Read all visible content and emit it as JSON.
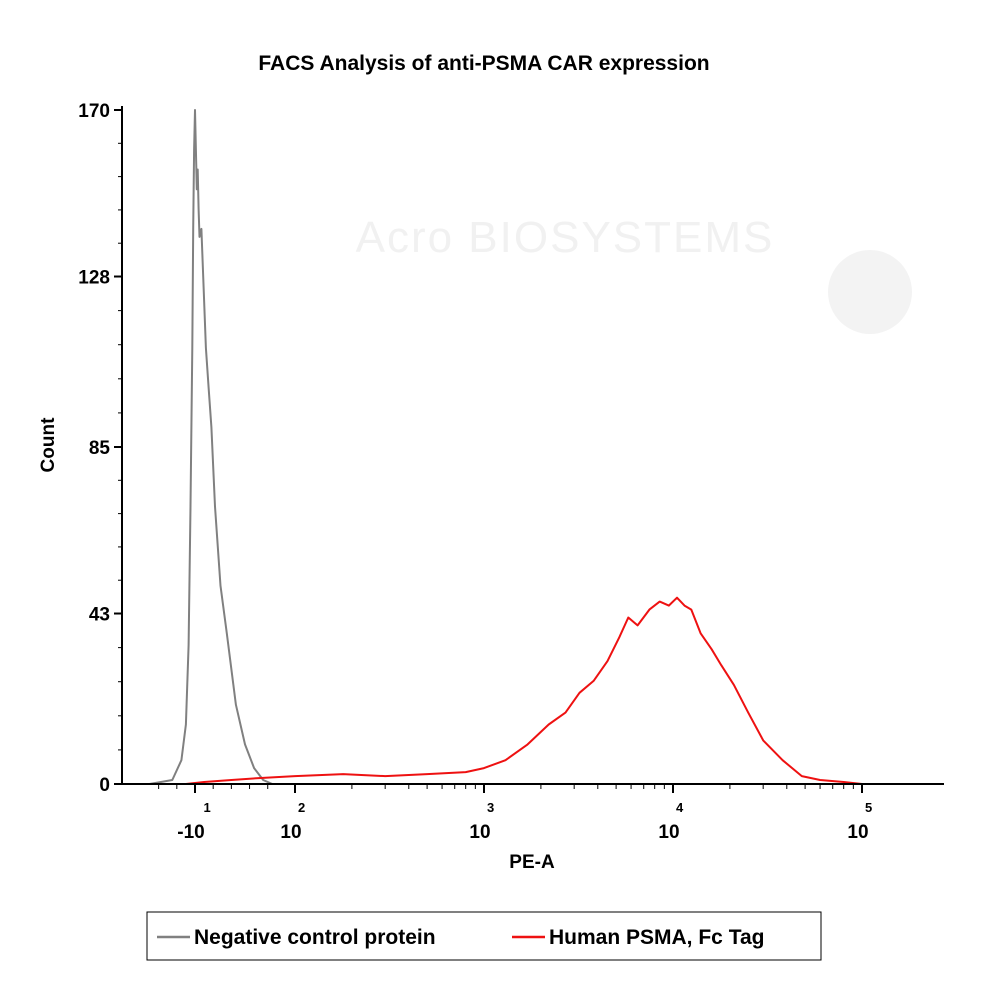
{
  "chart_data": {
    "type": "line",
    "title": "FACS Analysis of anti-PSMA CAR expression",
    "xlabel": "PE-A",
    "ylabel": "Count",
    "x_scale": "biexponential",
    "x_ticks": [
      {
        "base": "-10",
        "exp": "1",
        "value": -10
      },
      {
        "base": "10",
        "exp": "2",
        "value": 100
      },
      {
        "base": "10",
        "exp": "3",
        "value": 1000
      },
      {
        "base": "10",
        "exp": "4",
        "value": 10000
      },
      {
        "base": "10",
        "exp": "5",
        "value": 100000
      }
    ],
    "y_ticks": [
      "0",
      "43",
      "85",
      "128",
      "170"
    ],
    "ylim": [
      0,
      170
    ],
    "legend_position": "bottom",
    "watermark": "Acro BIOSYSTEMS",
    "series": [
      {
        "name": "Negative control protein",
        "color": "#808080",
        "points": [
          [
            -60,
            0
          ],
          [
            -35,
            1
          ],
          [
            -25,
            6
          ],
          [
            -20,
            15
          ],
          [
            -17,
            35
          ],
          [
            -15,
            70
          ],
          [
            -13,
            110
          ],
          [
            -12,
            140
          ],
          [
            -11,
            160
          ],
          [
            -10,
            170
          ],
          [
            -9,
            160
          ],
          [
            -8,
            150
          ],
          [
            -7,
            155
          ],
          [
            -6,
            145
          ],
          [
            -5,
            138
          ],
          [
            -3,
            140
          ],
          [
            -1,
            128
          ],
          [
            2,
            110
          ],
          [
            5,
            100
          ],
          [
            8,
            90
          ],
          [
            12,
            70
          ],
          [
            18,
            50
          ],
          [
            25,
            38
          ],
          [
            35,
            20
          ],
          [
            45,
            10
          ],
          [
            55,
            4
          ],
          [
            65,
            1
          ],
          [
            75,
            0
          ]
        ]
      },
      {
        "name": "Human PSMA, Fc Tag",
        "color": "#ee1111",
        "points": [
          [
            -20,
            0
          ],
          [
            0,
            0.5
          ],
          [
            30,
            1
          ],
          [
            60,
            1.5
          ],
          [
            100,
            2
          ],
          [
            180,
            2.5
          ],
          [
            300,
            2
          ],
          [
            500,
            2.5
          ],
          [
            800,
            3
          ],
          [
            1000,
            4
          ],
          [
            1300,
            6
          ],
          [
            1700,
            10
          ],
          [
            2200,
            15
          ],
          [
            2700,
            18
          ],
          [
            3200,
            23
          ],
          [
            3800,
            26
          ],
          [
            4500,
            31
          ],
          [
            5200,
            37
          ],
          [
            5800,
            42
          ],
          [
            6500,
            40
          ],
          [
            7500,
            44
          ],
          [
            8500,
            46
          ],
          [
            9500,
            45
          ],
          [
            10500,
            47
          ],
          [
            11500,
            45
          ],
          [
            12500,
            44
          ],
          [
            14000,
            38
          ],
          [
            16000,
            34
          ],
          [
            18000,
            30
          ],
          [
            21000,
            25
          ],
          [
            25000,
            18
          ],
          [
            30000,
            11
          ],
          [
            38000,
            6
          ],
          [
            48000,
            2
          ],
          [
            60000,
            1
          ],
          [
            80000,
            0.5
          ],
          [
            100000,
            0
          ]
        ]
      }
    ]
  }
}
